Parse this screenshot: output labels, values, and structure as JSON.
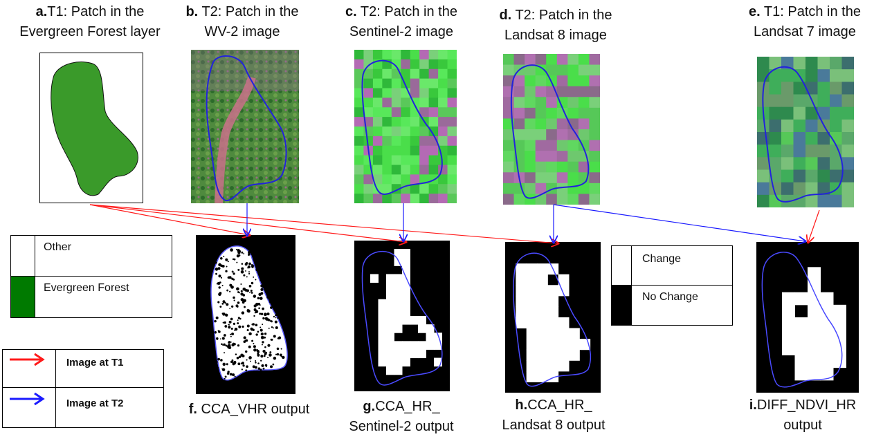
{
  "panels": {
    "a": {
      "letter": "a.",
      "line1": "T1: Patch in the",
      "line2": "Evergreen Forest layer"
    },
    "b": {
      "letter": "b.",
      "line1": " T2: Patch in the",
      "line2": "WV-2 image"
    },
    "c": {
      "letter": "c.",
      "line1": " T2: Patch in the",
      "line2": "Sentinel-2 image"
    },
    "d": {
      "letter": "d.",
      "line1": " T2: Patch in the",
      "line2": "Landsat 8 image"
    },
    "e": {
      "letter": "e.",
      "line1": " T1: Patch in the",
      "line2": "Landsat 7 image"
    },
    "f": {
      "letter": "f.",
      "line1": " CCA_VHR output",
      "line2": ""
    },
    "g": {
      "letter": "g.",
      "line1": "CCA_HR_",
      "line2": "Sentinel-2 output"
    },
    "h": {
      "letter": "h.",
      "line1": "CCA_HR_",
      "line2": "Landsat 8 output"
    },
    "i": {
      "letter": "i.",
      "line1": "DIFF_NDVI_HR",
      "line2": "output"
    }
  },
  "legend_landcover": {
    "items": [
      {
        "label": "Other",
        "color": "#ffffff"
      },
      {
        "label": "Evergreen Forest",
        "color": "#007a00"
      }
    ]
  },
  "legend_change": {
    "items": [
      {
        "label": "Change",
        "color": "#ffffff"
      },
      {
        "label": "No Change",
        "color": "#000000"
      }
    ]
  },
  "legend_arrows": {
    "items": [
      {
        "label": "Image at  T1",
        "color": "#ff1a1a"
      },
      {
        "label": "Image at  T2",
        "color": "#1a1aff"
      }
    ]
  },
  "colors": {
    "forest_patch": "#3a9a2a",
    "patch_outline": "#2222dd",
    "t1_arrow": "#ff1a1a",
    "t2_arrow": "#1a1aff"
  }
}
